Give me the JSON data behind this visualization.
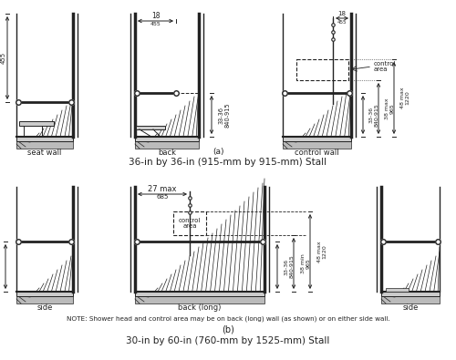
{
  "bg_color": "#ffffff",
  "line_color": "#222222",
  "title_a": "36-in by 36-in (915-mm by 915-mm) Stall",
  "title_b": "30-in by 60-in (760-mm by 1525-mm) Stall",
  "label_a": "(a)",
  "label_b": "(b)",
  "note_b": "NOTE: Shower head and control area may be on back (long) wall (as shown) or on either side wall."
}
